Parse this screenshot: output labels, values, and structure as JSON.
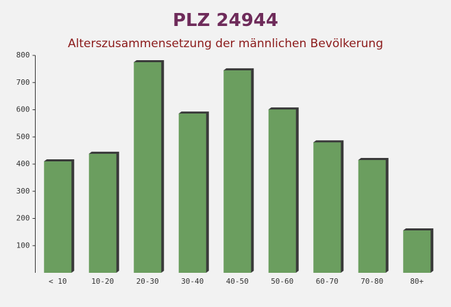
{
  "chart_data": {
    "type": "bar",
    "title": "PLZ 24944",
    "subtitle": "Alterszusammensetzung der männlichen Bevölkerung",
    "categories": [
      "< 10",
      "10-20",
      "20-30",
      "30-40",
      "40-50",
      "50-60",
      "60-70",
      "70-80",
      "80+"
    ],
    "values": [
      410,
      438,
      775,
      586,
      745,
      601,
      480,
      415,
      156
    ],
    "color": "#6b9e5f",
    "ylim": [
      0,
      800
    ],
    "yticks": [
      100,
      200,
      300,
      400,
      500,
      600,
      700,
      800
    ],
    "grid": false
  }
}
